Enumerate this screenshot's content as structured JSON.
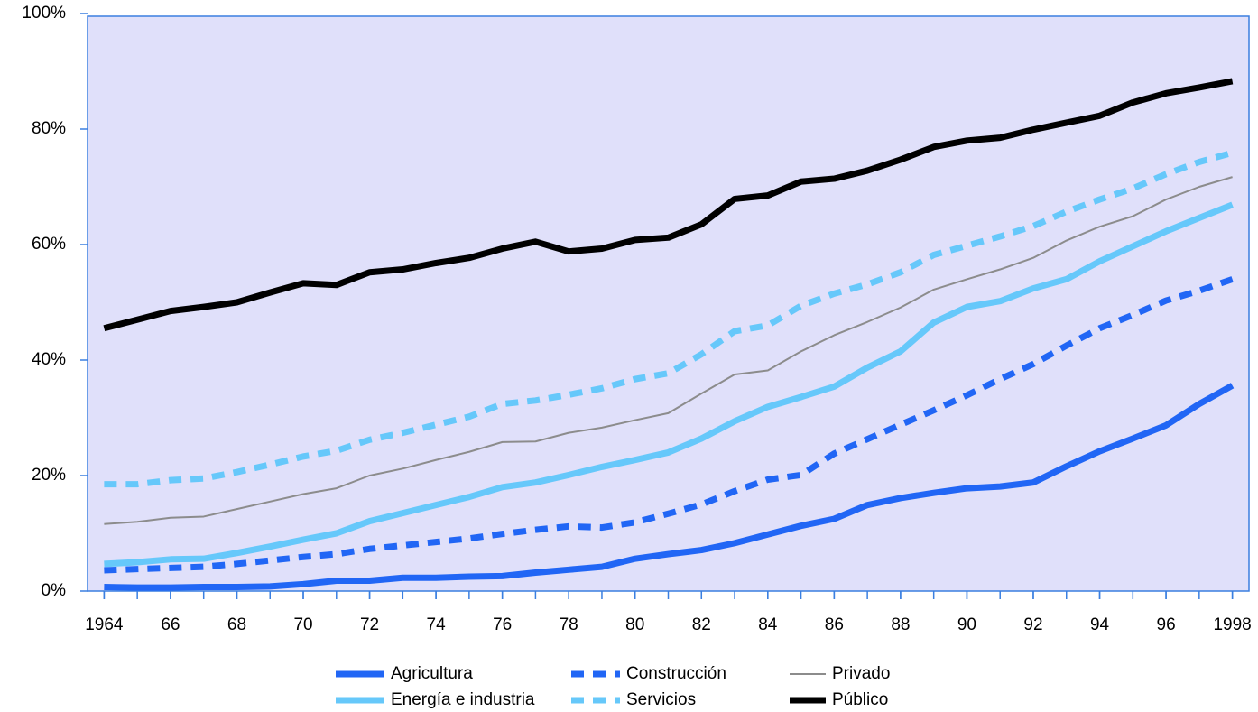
{
  "chart_data": {
    "type": "line",
    "x": [
      1964,
      1965,
      1966,
      1967,
      1968,
      1969,
      1970,
      1971,
      1972,
      1973,
      1974,
      1975,
      1976,
      1977,
      1978,
      1979,
      1980,
      1981,
      1982,
      1983,
      1984,
      1985,
      1986,
      1987,
      1988,
      1989,
      1990,
      1991,
      1992,
      1993,
      1994,
      1995,
      1996,
      1997,
      1998
    ],
    "xlim": [
      1963.5,
      1998.5
    ],
    "xticks": [
      1964,
      {
        "value": 1966,
        "label": "66"
      },
      {
        "value": 1968,
        "label": "68"
      },
      {
        "value": 1970,
        "label": "70"
      },
      {
        "value": 1972,
        "label": "72"
      },
      {
        "value": 1974,
        "label": "74"
      },
      {
        "value": 1976,
        "label": "76"
      },
      {
        "value": 1978,
        "label": "78"
      },
      {
        "value": 1980,
        "label": "80"
      },
      {
        "value": 1982,
        "label": "82"
      },
      {
        "value": 1984,
        "label": "84"
      },
      {
        "value": 1986,
        "label": "86"
      },
      {
        "value": 1988,
        "label": "88"
      },
      {
        "value": 1990,
        "label": "90"
      },
      {
        "value": 1992,
        "label": "92"
      },
      {
        "value": 1994,
        "label": "94"
      },
      {
        "value": 1996,
        "label": "96"
      },
      1998
    ],
    "ylim": [
      0,
      100
    ],
    "yticks": [
      {
        "value": 0,
        "label": "0%"
      },
      {
        "value": 20,
        "label": "20%"
      },
      {
        "value": 40,
        "label": "40%"
      },
      {
        "value": 60,
        "label": "60%"
      },
      {
        "value": 80,
        "label": "80%"
      },
      {
        "value": 100,
        "label": "100%"
      }
    ],
    "plot_background": "#e0e0fa",
    "legend": "bottom",
    "series": [
      {
        "name": "Agricultura",
        "color": "#2166f5",
        "dashed": false,
        "width": 7,
        "values": [
          0.7,
          0.6,
          0.6,
          0.7,
          0.7,
          0.8,
          1.2,
          1.8,
          1.8,
          2.3,
          2.3,
          2.5,
          2.6,
          3.2,
          3.7,
          4.2,
          5.6,
          6.4,
          7.1,
          8.3,
          9.8,
          11.3,
          12.5,
          14.9,
          16.1,
          17,
          17.8,
          18.1,
          18.8,
          21.6,
          24.2,
          26.4,
          28.7,
          32.4,
          35.6
        ]
      },
      {
        "name": "Energía e industria",
        "color": "#66c8fa",
        "dashed": false,
        "width": 7,
        "values": [
          4.7,
          5,
          5.5,
          5.6,
          6.6,
          7.7,
          8.9,
          10,
          12.1,
          13.5,
          14.9,
          16.3,
          18,
          18.8,
          20.1,
          21.5,
          22.7,
          24,
          26.4,
          29.4,
          31.9,
          33.6,
          35.4,
          38.7,
          41.5,
          46.5,
          49.2,
          50.2,
          52.4,
          54,
          57.1,
          59.7,
          62.3,
          64.6,
          66.9
        ]
      },
      {
        "name": "Construcción",
        "color": "#2166f5",
        "dashed": true,
        "width": 7,
        "values": [
          3.6,
          3.8,
          4,
          4.2,
          4.7,
          5.3,
          5.9,
          6.4,
          7.3,
          7.9,
          8.5,
          9.1,
          9.9,
          10.6,
          11.2,
          11,
          11.9,
          13.4,
          15,
          17.3,
          19.3,
          20.1,
          23.8,
          26.3,
          28.8,
          31.3,
          33.9,
          36.7,
          39.3,
          42.5,
          45.5,
          47.8,
          50.3,
          52,
          54
        ]
      },
      {
        "name": "Servicios",
        "color": "#66c8fa",
        "dashed": true,
        "width": 7,
        "values": [
          18.5,
          18.5,
          19.2,
          19.5,
          20.6,
          21.9,
          23.3,
          24.3,
          26.2,
          27.4,
          28.8,
          30.2,
          32.4,
          33,
          34,
          35.1,
          36.7,
          37.7,
          41,
          45,
          46,
          49.4,
          51.5,
          53.1,
          55.2,
          58.2,
          59.8,
          61.4,
          63.2,
          65.7,
          67.8,
          69.7,
          72.2,
          74.3,
          75.9
        ]
      },
      {
        "name": "Privado",
        "color": "#8c8c8c",
        "dashed": false,
        "width": 2,
        "values": [
          11.6,
          12,
          12.7,
          12.9,
          14.2,
          15.5,
          16.8,
          17.8,
          20,
          21.2,
          22.7,
          24.1,
          25.8,
          25.9,
          27.4,
          28.3,
          29.6,
          30.8,
          34.2,
          37.5,
          38.2,
          41.5,
          44.3,
          46.6,
          49.1,
          52.2,
          54,
          55.7,
          57.7,
          60.7,
          63.1,
          64.9,
          67.8,
          70,
          71.7
        ]
      },
      {
        "name": "Público",
        "color": "#000000",
        "dashed": false,
        "width": 7,
        "values": [
          45.5,
          47,
          48.5,
          49.2,
          50,
          51.7,
          53.3,
          53,
          55.2,
          55.7,
          56.8,
          57.7,
          59.3,
          60.5,
          58.8,
          59.3,
          60.8,
          61.2,
          63.5,
          67.9,
          68.5,
          70.9,
          71.4,
          72.8,
          74.7,
          76.9,
          78,
          78.5,
          79.9,
          81.1,
          82.3,
          84.6,
          86.2,
          87.2,
          88.3
        ]
      }
    ]
  }
}
